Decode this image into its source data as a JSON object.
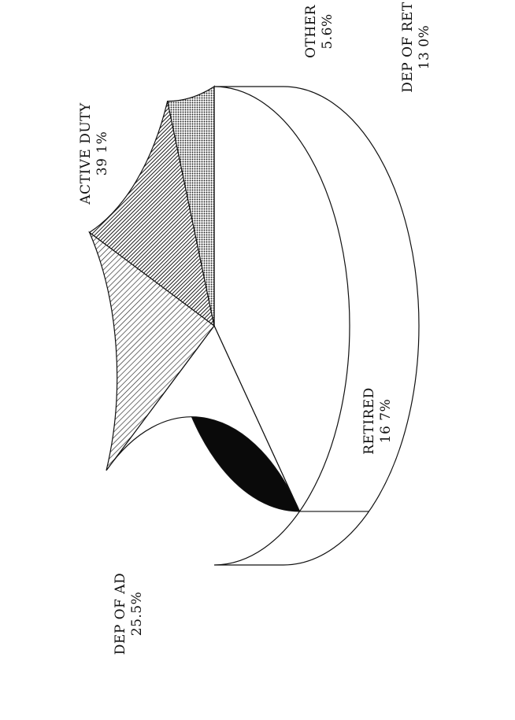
{
  "chart_data": {
    "type": "pie",
    "title": "",
    "slices": [
      {
        "label": "ACTIVE DUTY",
        "value": 39.1,
        "value_text": "39 1%",
        "fill": "solid-black"
      },
      {
        "label": "DEP OF AD",
        "value": 25.5,
        "value_text": "25.5%",
        "fill": "white"
      },
      {
        "label": "RETIRED",
        "value": 16.7,
        "value_text": "16 7%",
        "fill": "light-diagonal-hatch"
      },
      {
        "label": "DEP OF RET",
        "value": 13.0,
        "value_text": "13 0%",
        "fill": "dark-diagonal-hatch"
      },
      {
        "label": "OTHER",
        "value": 5.6,
        "value_text": "5.6%",
        "fill": "dotted"
      }
    ],
    "style": "3d-tilted",
    "orientation": "rotated-90-ccw",
    "colors": {
      "ink": "#111111",
      "background": "#ffffff",
      "solid": "#0a0a0a"
    }
  }
}
